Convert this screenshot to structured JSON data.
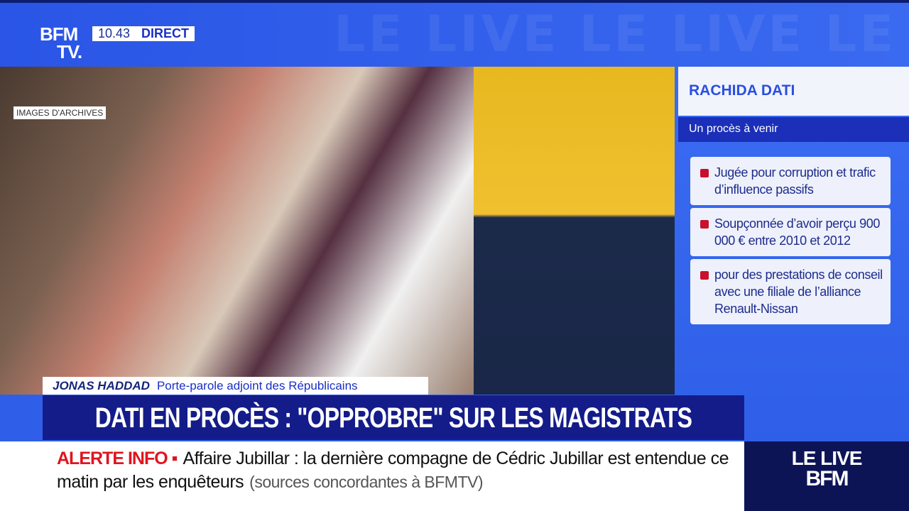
{
  "header": {
    "logo": "BFM",
    "logo_tv": "TV.",
    "time": "10.43",
    "status": "DIRECT",
    "watermark": "LE LIVE LE LIVE LE LIVE LE"
  },
  "video": {
    "archive_label": "IMAGES D'ARCHIVES"
  },
  "panel": {
    "title": "RACHIDA DATI",
    "subtitle": "Un procès à venir",
    "bullets": [
      "Jugée pour corruption et trafic d’influence passifs",
      "Soupçonnée d’avoir perçu 900 000 € entre 2010 et 2012",
      "pour des prestations de conseil avec une filiale de l’alliance Renault-Nissan"
    ],
    "bullet_color": "#c8102e"
  },
  "strap": {
    "name": "JONAS HADDAD",
    "role": "Porte-parole adjoint des Républicains"
  },
  "headline": "DATI EN PROCÈS : \"OPPROBRE\" SUR LES MAGISTRATS",
  "ticker": {
    "label": "ALERTE INFO ▪",
    "text": "Affaire Jubillar : la dernière compagne de Cédric Jubillar est entendue ce matin par les enquêteurs",
    "source": "(sources concordantes à BFMTV)"
  },
  "corner": {
    "line1": "LE LIVE",
    "line2": "BFM"
  }
}
